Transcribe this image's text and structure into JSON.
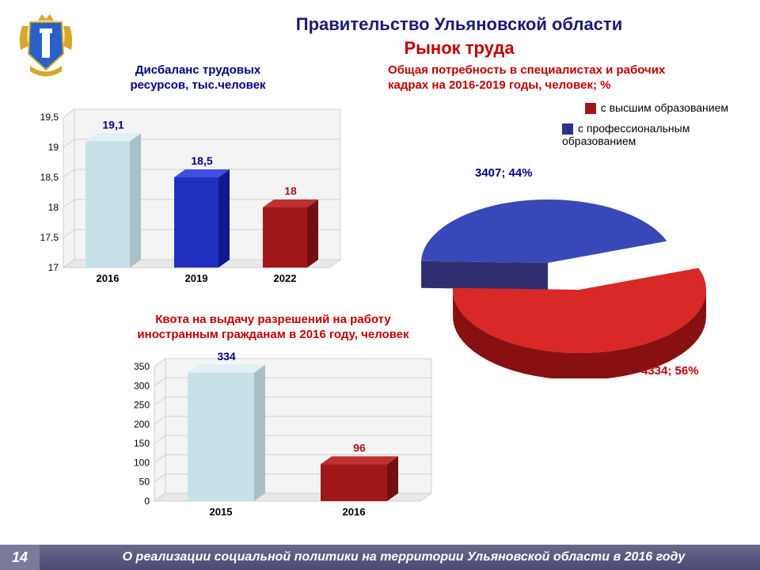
{
  "header": {
    "title_line1": "Правительство Ульяновской области",
    "title_line2": "Рынок труда"
  },
  "chart1": {
    "type": "bar3d",
    "title_line1": "Дисбаланс трудовых",
    "title_line2": "ресурсов, тыс.человек",
    "title_color": "#000080",
    "title_highlight_color": "#000000",
    "categories": [
      "2016",
      "2019",
      "2022"
    ],
    "values": [
      19.1,
      18.5,
      18
    ],
    "value_labels": [
      "19,1",
      "18,5",
      "18"
    ],
    "bar_colors": [
      "#c8e0e8",
      "#2030c0",
      "#a01818"
    ],
    "bar_top_colors": [
      "#e0f0f4",
      "#4050e0",
      "#c03030"
    ],
    "bar_side_colors": [
      "#a8c0c8",
      "#101890",
      "#701010"
    ],
    "ylim": [
      17,
      19.5
    ],
    "ytick_step": 0.5,
    "ytick_labels": [
      "17",
      "17,5",
      "18",
      "18,5",
      "19",
      "19,5"
    ],
    "label_colors": [
      "#000080",
      "#000080",
      "#a01818"
    ],
    "grid_color": "#d0d0d0",
    "floor_color": "#e8e8e8",
    "back_color": "#f4f4f4"
  },
  "chart2": {
    "type": "bar3d",
    "title_line1": "Квота на выдачу разрешений на работу",
    "title_line2": "иностранным гражданам в 2016 году, человек",
    "title_color": "#c00000",
    "categories": [
      "2015",
      "2016"
    ],
    "values": [
      334,
      96
    ],
    "value_labels": [
      "334",
      "96"
    ],
    "bar_colors": [
      "#c8e0e8",
      "#a01818"
    ],
    "bar_top_colors": [
      "#e0f0f4",
      "#c03030"
    ],
    "bar_side_colors": [
      "#a8c0c8",
      "#701010"
    ],
    "ylim": [
      0,
      350
    ],
    "ytick_step": 50,
    "ytick_labels": [
      "0",
      "50",
      "100",
      "150",
      "200",
      "250",
      "300",
      "350"
    ],
    "label_colors": [
      "#000080",
      "#a01818"
    ],
    "grid_color": "#d0d0d0",
    "floor_color": "#e8e8e8",
    "back_color": "#f4f4f4"
  },
  "pie": {
    "type": "pie3d_exploded",
    "title_line1": "Общая потребность в специалистах и рабочих",
    "title_line2": "кадрах на 2016-2019 годы, человек; %",
    "title_color": "#c00000",
    "slices": [
      {
        "label": "с высшим образованием",
        "value": 4334,
        "percent": 56,
        "color": "#c01818",
        "top_color": "#d82828",
        "side_color": "#881010",
        "text": "4334; 56%",
        "text_color": "#c00000"
      },
      {
        "label": "с профессиональным образованием",
        "value": 3407,
        "percent": 44,
        "color": "#283090",
        "top_color": "#3848b8",
        "side_color": "#181860",
        "text": "3407; 44%",
        "text_color": "#000080"
      }
    ],
    "legend_colors": [
      "#a01818",
      "#283090"
    ]
  },
  "footer": {
    "page": "14",
    "text": "О реализации социальной политики на территории Ульяновской области в 2016 году"
  },
  "coat_colors": {
    "shield_outer": "#d4a828",
    "shield_inner": "#2860c8",
    "column": "#ffffff",
    "crown": "#d4a828"
  }
}
